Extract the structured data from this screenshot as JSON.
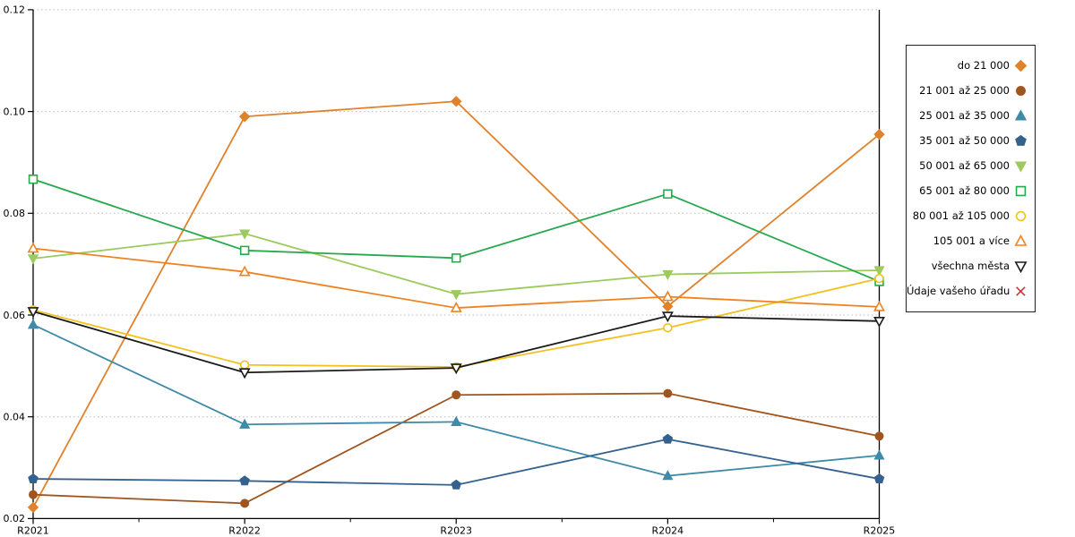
{
  "chart_data": {
    "type": "line",
    "title": "",
    "xlabel": "",
    "ylabel": "",
    "categories": [
      "R2021",
      "R2022",
      "R2023",
      "R2024",
      "R2025"
    ],
    "ylim": [
      0.02,
      0.12
    ],
    "yticks": [
      0.02,
      0.04,
      0.06,
      0.08,
      0.1,
      0.12
    ],
    "y_tick_labels": [
      "0.02",
      "0.04",
      "0.06",
      "0.08",
      "0.10",
      "0.12"
    ],
    "grid": "horizontal-dotted",
    "grid_color": "#bdbdbd",
    "axis_color": "#000000",
    "legend_position": "right",
    "series": [
      {
        "name": "do 21 000",
        "color": "#e0812b",
        "marker": "diamond",
        "marker_fill": "solid",
        "values": [
          0.0222,
          0.099,
          0.102,
          0.0617,
          0.0955
        ]
      },
      {
        "name": "21 001 až 25 000",
        "color": "#a0551e",
        "marker": "circle",
        "marker_fill": "solid",
        "values": [
          0.0247,
          0.023,
          0.0443,
          0.0446,
          0.0362
        ]
      },
      {
        "name": "25 001 až 35 000",
        "color": "#3f8aa8",
        "marker": "triangle-up",
        "marker_fill": "solid",
        "values": [
          0.0581,
          0.0385,
          0.039,
          0.0284,
          0.0324
        ]
      },
      {
        "name": "35 001 až 50 000",
        "color": "#35618e",
        "marker": "pentagon",
        "marker_fill": "solid",
        "values": [
          0.0278,
          0.0274,
          0.0266,
          0.0356,
          0.0278
        ]
      },
      {
        "name": "50 001 až 65 000",
        "color": "#9cca5d",
        "marker": "triangle-down",
        "marker_fill": "solid",
        "values": [
          0.0711,
          0.076,
          0.0641,
          0.068,
          0.0688
        ]
      },
      {
        "name": "65 001 až 80 000",
        "color": "#27a94e",
        "marker": "square",
        "marker_fill": "open",
        "values": [
          0.0867,
          0.0727,
          0.0712,
          0.0838,
          0.0666
        ]
      },
      {
        "name": "80 001 až 105 000",
        "color": "#f2c11d",
        "marker": "circle",
        "marker_fill": "open",
        "values": [
          0.061,
          0.0502,
          0.0498,
          0.0575,
          0.0672
        ]
      },
      {
        "name": "105 001 a více",
        "color": "#ef8222",
        "marker": "triangle-up",
        "marker_fill": "open",
        "values": [
          0.0731,
          0.0685,
          0.0614,
          0.0636,
          0.0616
        ]
      },
      {
        "name": "všechna města",
        "color": "#1a1a1a",
        "marker": "triangle-down",
        "marker_fill": "open",
        "values": [
          0.0607,
          0.0487,
          0.0496,
          0.0598,
          0.0588
        ]
      },
      {
        "name": "Údaje vašeho úřadu",
        "color": "#c63636",
        "marker": "x",
        "marker_fill": "open",
        "values": []
      }
    ]
  }
}
